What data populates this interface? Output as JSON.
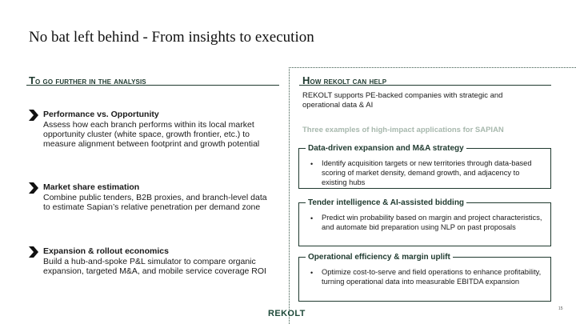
{
  "title": "No bat left behind -  From insights to execution",
  "left": {
    "heading_first": "T",
    "heading_rest": "o go further in the analysis",
    "points": [
      {
        "title": "Performance vs. Opportunity",
        "body": "Assess how each branch performs within its local market opportunity cluster (white space, growth frontier, etc.) to measure alignment between footprint and growth potential"
      },
      {
        "title": "Market share estimation",
        "body": "Combine public tenders, B2B proxies, and branch-level data to estimate Sapian’s relative penetration per demand zone"
      },
      {
        "title": "Expansion & rollout economics",
        "body": "Build a hub-and-spoke P&L simulator to compare organic expansion, targeted M&A, and mobile service coverage ROI"
      }
    ]
  },
  "right": {
    "heading_first": "H",
    "heading_rest": "ow rekolt can help",
    "intro": "REKOLT supports PE-backed companies with strategic and operational data & AI",
    "examples_title": "Three examples of high-impact applications for SAPIAN",
    "cards": [
      {
        "title": "Data-driven expansion and M&A strategy",
        "bullet": "Identify acquisition targets or new territories through data-based scoring of market density, demand growth, and adjacency to existing hubs"
      },
      {
        "title": "Tender intelligence & AI-assisted bidding",
        "bullet": "Predict win probability based on margin and project characteristics, and automate bid preparation using NLP on past proposals"
      },
      {
        "title": "Operational efficiency & margin uplift",
        "bullet": "Optimize cost-to-serve and field operations to enhance profitability, turning operational data into measurable EBITDA expansion"
      }
    ]
  },
  "footer": {
    "logo": "REKOLT",
    "page_number": "15"
  },
  "colors": {
    "brand_green": "#1f3a2f",
    "muted_green": "#a7b8ad"
  },
  "icons": {
    "point_marker": "chevron-right-icon"
  }
}
